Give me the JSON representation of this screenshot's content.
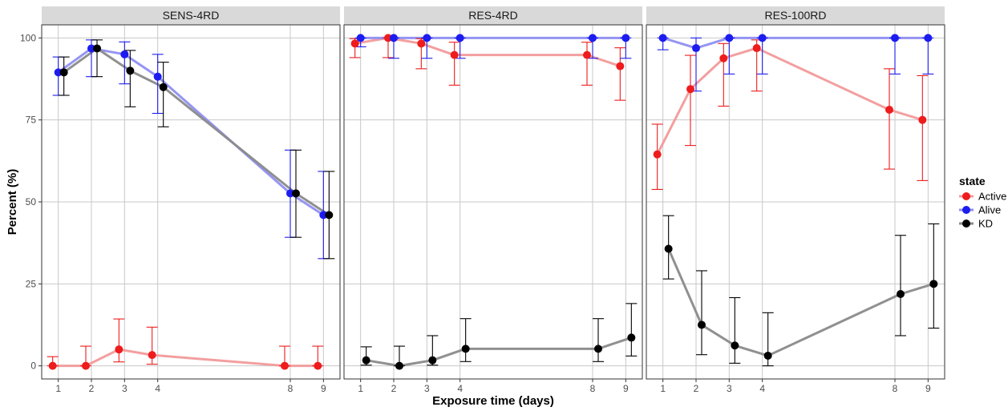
{
  "chart_data": {
    "type": "line",
    "xlabel": "Exposure time (days)",
    "ylabel": "Percent (%)",
    "x_ticks": [
      1,
      2,
      3,
      4,
      8,
      9
    ],
    "y_ticks": [
      0,
      25,
      50,
      75,
      100
    ],
    "xlim": [
      0.5,
      9.5
    ],
    "ylim": [
      -4,
      104
    ],
    "grid": true,
    "legend_placement": "right",
    "legend_title": "state",
    "series_styles": [
      {
        "name": "Active",
        "color": "#ee1c1c",
        "line": "#f29a9a"
      },
      {
        "name": "Alive",
        "color": "#1c1cf0",
        "line": "#8f8ff2"
      },
      {
        "name": "KD",
        "color": "#000000",
        "line": "#8a8a8a"
      }
    ],
    "panels": [
      {
        "title": "SENS-4RD",
        "series": [
          {
            "name": "Active",
            "x": [
              1,
              2,
              3,
              4,
              8,
              9
            ],
            "y": [
              0,
              0,
              5,
              3.3,
              0,
              0
            ],
            "err_low": [
              0,
              0,
              1.2,
              0.5,
              0,
              0
            ],
            "err_high": [
              2.8,
              6,
              14.3,
              11.8,
              6,
              6
            ]
          },
          {
            "name": "Alive",
            "x": [
              1,
              2,
              3,
              4,
              8,
              9
            ],
            "y": [
              89.5,
              96.8,
              95,
              88.2,
              52.6,
              46
            ],
            "err_low": [
              82.5,
              88.2,
              86,
              77,
              39.2,
              32.7
            ],
            "err_high": [
              94.2,
              99.4,
              98.8,
              95,
              65.8,
              59.3
            ]
          },
          {
            "name": "KD",
            "x": [
              1,
              2,
              3,
              4,
              8,
              9
            ],
            "y": [
              89.5,
              96.8,
              90,
              85,
              52.6,
              46
            ],
            "err_low": [
              82.5,
              88.2,
              79,
              72.9,
              39.2,
              32.7
            ],
            "err_high": [
              94.2,
              99.4,
              96.2,
              92.6,
              65.8,
              59.3
            ]
          }
        ]
      },
      {
        "title": "RES-4RD",
        "series": [
          {
            "name": "Active",
            "x": [
              1,
              2,
              3,
              4,
              8,
              9
            ],
            "y": [
              98.3,
              100,
              98.3,
              94.8,
              94.8,
              91.4
            ],
            "err_low": [
              94,
              94,
              90.6,
              85.6,
              85.6,
              81
            ],
            "err_high": [
              99.8,
              100,
              99.8,
              98.7,
              98.7,
              97
            ]
          },
          {
            "name": "Alive",
            "x": [
              1,
              2,
              3,
              4,
              8,
              9
            ],
            "y": [
              100,
              100,
              100,
              100,
              100,
              100
            ],
            "err_low": [
              97.3,
              93.8,
              93.8,
              93.8,
              93.8,
              93.8
            ],
            "err_high": [
              100,
              100,
              100,
              100,
              100,
              100
            ]
          },
          {
            "name": "KD",
            "x": [
              1,
              2,
              3,
              4,
              8,
              9
            ],
            "y": [
              1.7,
              0,
              1.7,
              5.2,
              5.2,
              8.6
            ],
            "err_low": [
              0.2,
              0,
              0.2,
              1.3,
              1.3,
              3
            ],
            "err_high": [
              5.8,
              6,
              9.2,
              14.4,
              14.4,
              19
            ]
          }
        ]
      },
      {
        "title": "RES-100RD",
        "series": [
          {
            "name": "Active",
            "x": [
              1,
              2,
              3,
              4,
              8,
              9
            ],
            "y": [
              64.5,
              84.4,
              93.8,
              96.9,
              78.1,
              75
            ],
            "err_low": [
              53.8,
              67.2,
              79.2,
              83.8,
              60,
              56.5
            ],
            "err_high": [
              73.7,
              94.7,
              98.3,
              99.4,
              90.6,
              88.5
            ]
          },
          {
            "name": "Alive",
            "x": [
              1,
              2,
              3,
              4,
              8,
              9
            ],
            "y": [
              100,
              96.9,
              100,
              100,
              100,
              100
            ],
            "err_low": [
              96.4,
              83.8,
              89,
              89,
              89,
              89
            ],
            "err_high": [
              100,
              100,
              100,
              100,
              100,
              100
            ]
          },
          {
            "name": "KD",
            "x": [
              1,
              2,
              3,
              4,
              8,
              9
            ],
            "y": [
              35.7,
              12.5,
              6.2,
              3.1,
              21.9,
              25
            ],
            "err_low": [
              26.5,
              3.4,
              0.8,
              0,
              9.2,
              11.5
            ],
            "err_high": [
              45.8,
              29,
              20.8,
              16.2,
              39.8,
              43.3
            ]
          }
        ]
      }
    ]
  }
}
